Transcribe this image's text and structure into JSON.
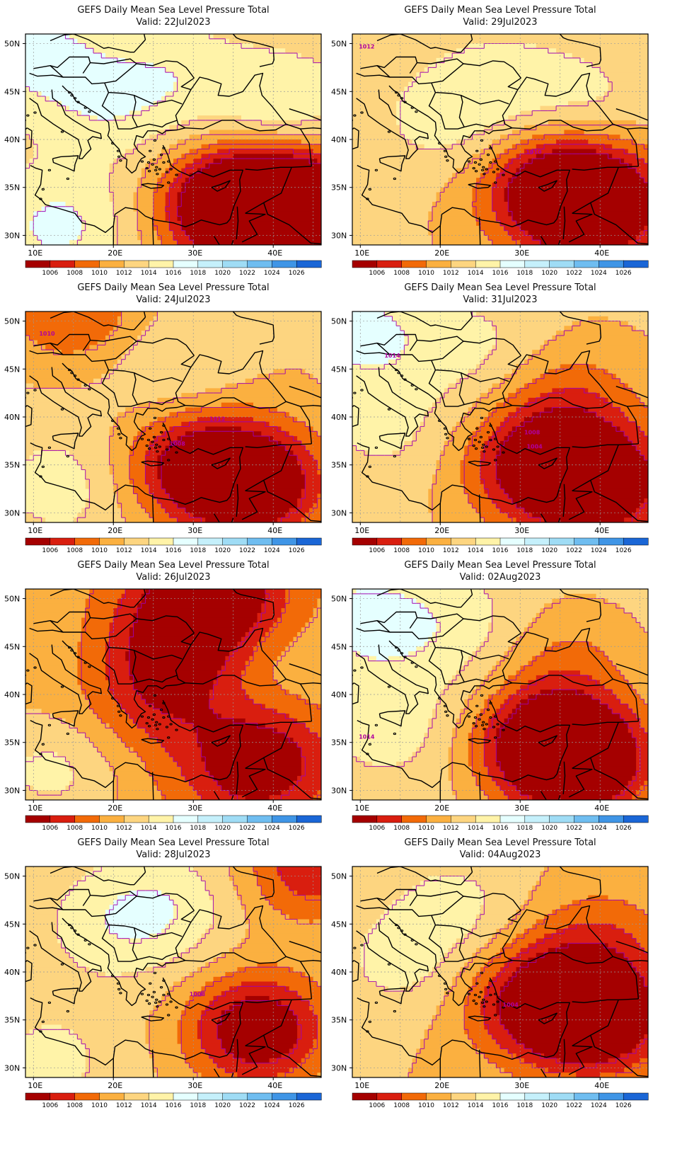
{
  "colors": {
    "band_lt1006": "#a50000",
    "band_1006_1008": "#d91e0f",
    "band_1008_1010": "#f26a08",
    "band_1010_1012": "#fbb040",
    "band_1012_1014": "#fdd580",
    "band_1014_1016": "#fff3a8",
    "band_1016_1018": "#e5ffff",
    "band_1018_1020": "#c5f0fb",
    "band_1020_1022": "#9fdcf5",
    "band_1022_1024": "#6fbdf0",
    "band_1024_1026": "#3f95e6",
    "band_gt1026": "#1a66d6",
    "contour": "#a000b0",
    "coast": "#000000",
    "grid": "#999999"
  },
  "colorbar": {
    "labels": [
      "1006",
      "1008",
      "1010",
      "1012",
      "1014",
      "1016",
      "1018",
      "1020",
      "1022",
      "1024",
      "1026"
    ],
    "colors": [
      "#a50000",
      "#d91e0f",
      "#f26a08",
      "#fbb040",
      "#fdd580",
      "#fff3a8",
      "#e5ffff",
      "#c5f0fb",
      "#9fdcf5",
      "#6fbdf0",
      "#3f95e6",
      "#1a66d6"
    ]
  },
  "axes": {
    "lon_ticks": [
      "10E",
      "20E",
      "30E",
      "40E"
    ],
    "lat_ticks": [
      "50N",
      "45N",
      "40N",
      "35N",
      "30N"
    ],
    "lon_values": [
      10,
      20,
      30,
      40
    ],
    "lat_values": [
      50,
      45,
      40,
      35,
      30
    ],
    "lon_range": [
      9,
      46
    ],
    "lat_range": [
      29,
      51
    ]
  },
  "panels": [
    {
      "title": "GEFS Daily Mean Sea Level Pressure Total",
      "valid": "Valid: 22Jul2023",
      "contour_labels": [],
      "pressure_field": {
        "base": 1012.5,
        "lows": [
          [
            36,
            32,
            1005.0
          ],
          [
            44,
            34,
            1003.5
          ],
          [
            35,
            34,
            1006.5
          ]
        ],
        "highs": [
          [
            19,
            43,
            1015.0
          ],
          [
            13,
            31,
            1016.5
          ],
          [
            41,
            43,
            1016.5
          ],
          [
            10,
            49,
            1016.5
          ],
          [
            27,
            47,
            1015.0
          ]
        ]
      }
    },
    {
      "title": "GEFS Daily Mean Sea Level Pressure Total",
      "valid": "Valid: 29Jul2023",
      "contour_labels": [
        {
          "text": "1012",
          "lon": 10.8,
          "lat": 49.5
        },
        {
          "text": "1010",
          "lon": 31.7,
          "lat": 38.5
        }
      ],
      "pressure_field": {
        "base": 1012.2,
        "lows": [
          [
            40,
            33,
            1003.0
          ],
          [
            34,
            35,
            1004.5
          ]
        ],
        "highs": [
          [
            20,
            42,
            1014.5
          ],
          [
            27,
            46,
            1014.5
          ],
          [
            38,
            44,
            1014.5
          ]
        ]
      }
    },
    {
      "title": "GEFS Daily Mean Sea Level Pressure Total",
      "valid": "Valid: 24Jul2023",
      "contour_labels": [
        {
          "text": "1010",
          "lon": 11.7,
          "lat": 48.5
        },
        {
          "text": "1012",
          "lon": 33.0,
          "lat": 39.6
        },
        {
          "text": "1008",
          "lon": 28.0,
          "lat": 37.0
        }
      ],
      "pressure_field": {
        "base": 1012.5,
        "lows": [
          [
            38,
            33,
            1003.5
          ],
          [
            30,
            35,
            1005.0
          ],
          [
            15,
            51,
            1008.0
          ]
        ],
        "highs": [
          [
            14,
            33,
            1015.0
          ],
          [
            28,
            45,
            1014.5
          ],
          [
            40,
            45,
            1012.0
          ]
        ]
      }
    },
    {
      "title": "GEFS Daily Mean Sea Level Pressure Total",
      "valid": "Valid: 31Jul2023",
      "contour_labels": [
        {
          "text": "1014",
          "lon": 14.0,
          "lat": 46.2
        },
        {
          "text": "1008",
          "lon": 31.5,
          "lat": 38.2
        },
        {
          "text": "1004",
          "lon": 31.8,
          "lat": 36.7
        }
      ],
      "pressure_field": {
        "base": 1012.3,
        "lows": [
          [
            40,
            33,
            1003.0
          ],
          [
            32,
            35,
            1005.0
          ],
          [
            36,
            42,
            1009.0
          ]
        ],
        "highs": [
          [
            13,
            39,
            1014.5
          ],
          [
            25,
            47,
            1014.5
          ],
          [
            10,
            49,
            1016.5
          ]
        ]
      }
    },
    {
      "title": "GEFS Daily Mean Sea Level Pressure Total",
      "valid": "Valid: 26Jul2023",
      "contour_labels": [],
      "pressure_field": {
        "base": 1010.8,
        "lows": [
          [
            33,
            51,
            1004.0
          ],
          [
            38,
            33,
            1003.5
          ],
          [
            26,
            40,
            1007.0
          ],
          [
            28,
            46,
            1006.0
          ]
        ],
        "highs": [
          [
            12,
            32,
            1014.5
          ],
          [
            40,
            42,
            1012.0
          ],
          [
            10,
            45,
            1011.5
          ]
        ]
      }
    },
    {
      "title": "GEFS Daily Mean Sea Level Pressure Total",
      "valid": "Valid: 02Aug2023",
      "contour_labels": [
        {
          "text": "1014",
          "lon": 10.8,
          "lat": 35.4
        }
      ],
      "pressure_field": {
        "base": 1012.8,
        "lows": [
          [
            38,
            33,
            1003.5
          ],
          [
            33,
            35,
            1004.5
          ],
          [
            36,
            44,
            1010.0
          ]
        ],
        "highs": [
          [
            14,
            37,
            1015.0
          ],
          [
            22,
            47,
            1015.0
          ],
          [
            10,
            48,
            1016.5
          ]
        ]
      }
    },
    {
      "title": "GEFS Daily Mean Sea Level Pressure Total",
      "valid": "Valid: 28Jul2023",
      "contour_labels": [
        {
          "text": "1008",
          "lon": 30.5,
          "lat": 37.5
        }
      ],
      "pressure_field": {
        "base": 1012.5,
        "lows": [
          [
            38,
            34,
            1003.5
          ],
          [
            45,
            51,
            1006.5
          ]
        ],
        "highs": [
          [
            20,
            45,
            1015.0
          ],
          [
            12,
            31,
            1014.5
          ],
          [
            27,
            47,
            1015.0
          ]
        ]
      }
    },
    {
      "title": "GEFS Daily Mean Sea Level Pressure Total",
      "valid": "Valid: 04Aug2023",
      "contour_labels": [
        {
          "text": "1004",
          "lon": 28.8,
          "lat": 36.4
        }
      ],
      "pressure_field": {
        "base": 1012.0,
        "lows": [
          [
            40,
            35,
            1003.5
          ],
          [
            32,
            37,
            1005.0
          ],
          [
            40,
            43,
            1008.5
          ]
        ],
        "highs": [
          [
            15,
            41,
            1014.5
          ],
          [
            22,
            47,
            1014.5
          ]
        ]
      }
    }
  ]
}
